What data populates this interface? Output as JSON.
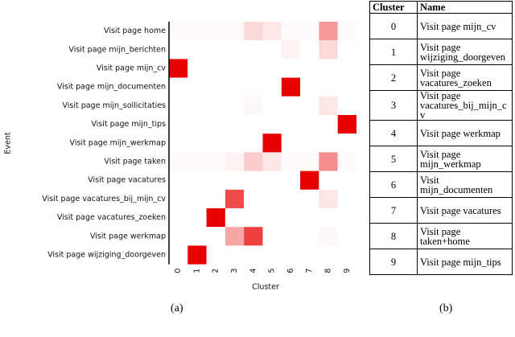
{
  "chart_data": {
    "type": "heatmap",
    "x_label": "Cluster",
    "y_label": "Event",
    "x_categories": [
      "0",
      "1",
      "2",
      "3",
      "4",
      "5",
      "6",
      "7",
      "8",
      "9"
    ],
    "y_categories": [
      "Visit page home",
      "Visit page mijn_berichten",
      "Visit page mijn_cv",
      "Visit page mijn_documenten",
      "Visit page mijn_sollicitaties",
      "Visit page mijn_tips",
      "Visit page mijn_werkmap",
      "Visit page taken",
      "Visit page vacatures",
      "Visit page vacatures_bij_mijn_cv",
      "Visit page vacatures_zoeken",
      "Visit page werkmap",
      "Visit page wijziging_doorgeven"
    ],
    "values": [
      [
        0.02,
        0.02,
        0.02,
        0.02,
        0.15,
        0.1,
        0.02,
        0.02,
        0.4,
        0.02
      ],
      [
        0,
        0,
        0,
        0,
        0,
        0,
        0.05,
        0,
        0.15,
        0
      ],
      [
        1,
        0,
        0,
        0,
        0,
        0,
        0,
        0,
        0,
        0
      ],
      [
        0,
        0,
        0,
        0,
        0,
        0,
        1,
        0,
        0,
        0
      ],
      [
        0,
        0,
        0,
        0,
        0.03,
        0,
        0,
        0,
        0.1,
        0
      ],
      [
        0,
        0,
        0,
        0,
        0,
        0,
        0,
        0,
        0,
        1
      ],
      [
        0,
        0,
        0,
        0,
        0,
        1,
        0,
        0,
        0,
        0
      ],
      [
        0.02,
        0.02,
        0.02,
        0.05,
        0.2,
        0.1,
        0.02,
        0.02,
        0.45,
        0.02
      ],
      [
        0,
        0,
        0,
        0,
        0,
        0,
        0,
        1,
        0,
        0
      ],
      [
        0,
        0,
        0,
        0.7,
        0,
        0,
        0,
        0,
        0.1,
        0
      ],
      [
        0,
        0,
        1,
        0,
        0,
        0,
        0,
        0,
        0,
        0
      ],
      [
        0,
        0,
        0,
        0.35,
        0.75,
        0,
        0,
        0,
        0.03,
        0
      ],
      [
        0,
        1,
        0,
        0,
        0,
        0,
        0,
        0,
        0,
        0
      ]
    ],
    "color": "#e80000",
    "caption": "(a)"
  },
  "table": {
    "header": [
      "Cluster",
      "Name"
    ],
    "rows": [
      [
        "0",
        "Visit page mijn_cv"
      ],
      [
        "1",
        "Visit page wijziging_doorgeven"
      ],
      [
        "2",
        "Visit page vacatures_zoeken"
      ],
      [
        "3",
        "Visit page vacatures_bij_mijn_cv"
      ],
      [
        "4",
        "Visit page werkmap"
      ],
      [
        "5",
        "Visit page mijn_werkmap"
      ],
      [
        "6",
        "Visit mijn_documenten"
      ],
      [
        "7",
        "Visit page vacatures"
      ],
      [
        "8",
        "Visit page taken+home"
      ],
      [
        "9",
        "Visit page mijn_tips"
      ]
    ],
    "caption": "(b)"
  }
}
